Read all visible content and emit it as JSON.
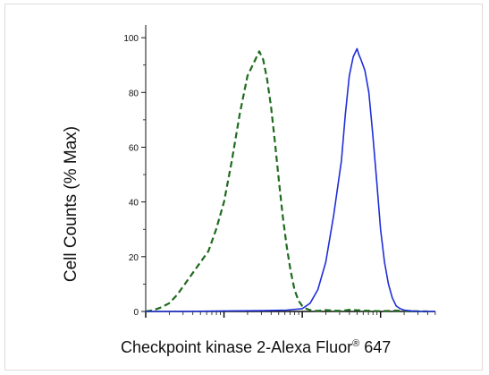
{
  "chart_data": {
    "type": "line",
    "ylabel": "Cell Counts (% Max)",
    "xlabel": "Checkpoint kinase 2-Alexa Fluor",
    "xlabel_mark": "®",
    "xlabel_suffix": "647",
    "xscale": "log",
    "xlim": [
      0,
      3.7
    ],
    "ylim": [
      0,
      102
    ],
    "yticks": [
      0,
      20,
      40,
      60,
      80,
      100
    ],
    "grid": false,
    "series": [
      {
        "color": "#1e6b1e",
        "style": "dashed",
        "x": [
          0.0,
          0.1,
          0.2,
          0.3,
          0.4,
          0.5,
          0.6,
          0.7,
          0.8,
          0.9,
          1.0,
          1.1,
          1.2,
          1.3,
          1.4,
          1.45,
          1.5,
          1.55,
          1.6,
          1.65,
          1.7,
          1.75,
          1.8,
          1.85,
          1.9,
          1.95,
          2.0,
          2.05,
          2.1,
          2.15,
          2.2,
          2.3,
          2.4,
          2.5,
          2.6,
          2.8,
          3.0,
          3.2,
          3.4,
          3.6
        ],
        "y": [
          0,
          0.5,
          1.5,
          3,
          6,
          10,
          14,
          18,
          22,
          30,
          40,
          55,
          72,
          86,
          92,
          95,
          92,
          85,
          75,
          62,
          48,
          35,
          24,
          15,
          8,
          4,
          2,
          1,
          0.5,
          0.3,
          0.2,
          0.5,
          0.3,
          0.2,
          0.6,
          0.3,
          0.1,
          0.3,
          0.1,
          0
        ]
      },
      {
        "color": "#1f2fd6",
        "style": "solid",
        "x": [
          0.0,
          0.5,
          1.0,
          1.5,
          1.8,
          2.0,
          2.1,
          2.2,
          2.3,
          2.4,
          2.5,
          2.55,
          2.6,
          2.65,
          2.7,
          2.72,
          2.75,
          2.8,
          2.85,
          2.9,
          2.95,
          3.0,
          3.05,
          3.1,
          3.15,
          3.2,
          3.25,
          3.3,
          3.4,
          3.5,
          3.7
        ],
        "y": [
          0,
          0,
          0.2,
          0.3,
          0.5,
          1,
          3,
          8,
          18,
          35,
          55,
          72,
          86,
          93,
          96,
          94,
          92,
          88,
          80,
          65,
          48,
          30,
          18,
          10,
          5,
          2,
          1,
          0.5,
          0.2,
          0,
          0
        ]
      }
    ]
  }
}
